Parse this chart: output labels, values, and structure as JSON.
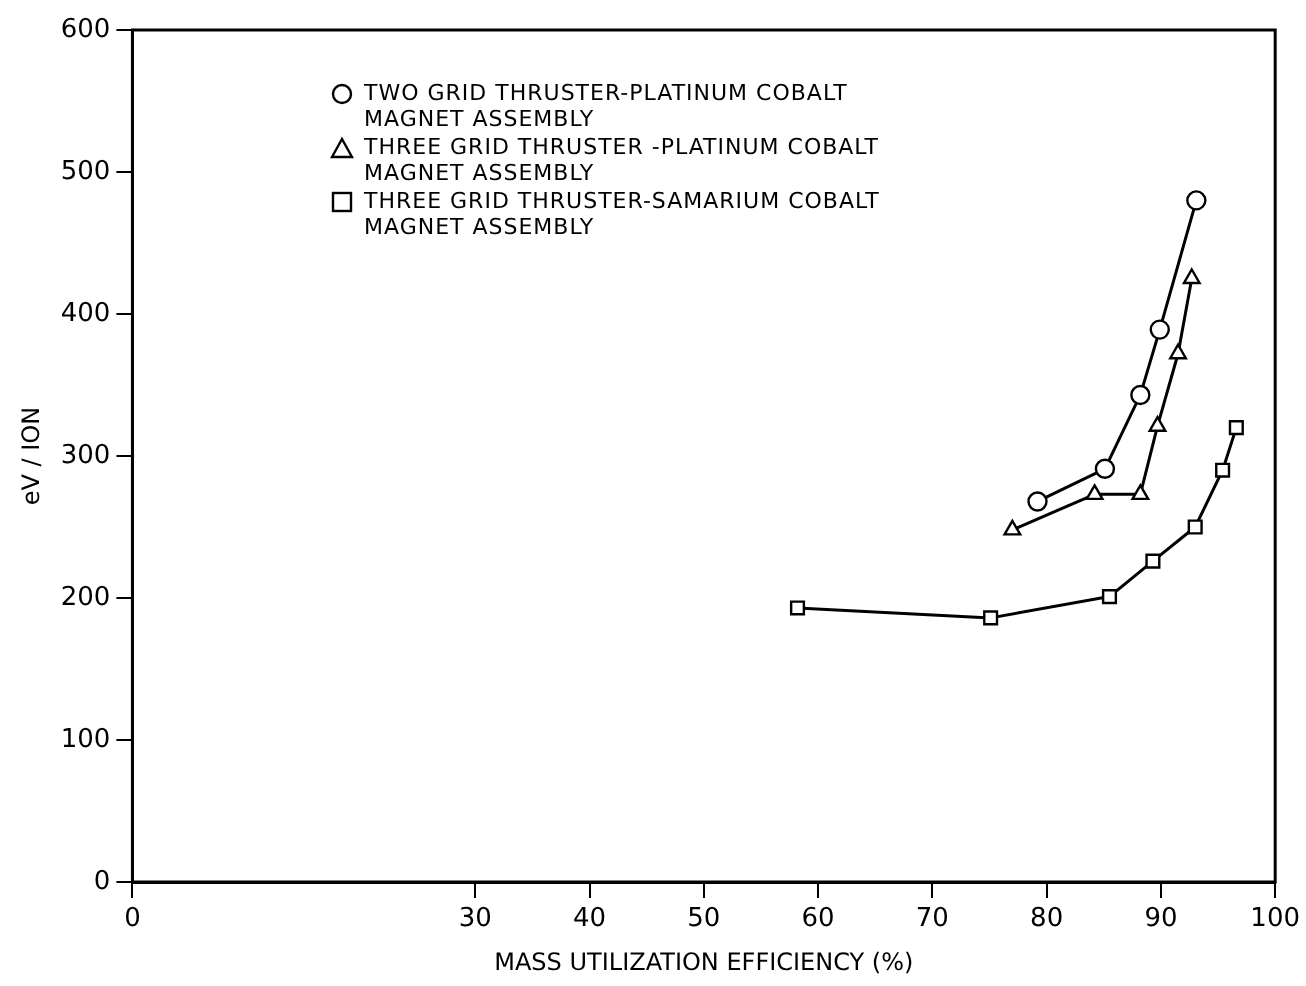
{
  "chart_data": {
    "type": "line",
    "xlabel": "MASS UTILIZATION EFFICIENCY (%)",
    "ylabel": "eV / ION",
    "xlim": [
      0,
      100
    ],
    "xticks": [
      0,
      30,
      40,
      50,
      60,
      70,
      80,
      90,
      100
    ],
    "ylim": [
      0,
      600
    ],
    "yticks": [
      0,
      100,
      200,
      300,
      400,
      500,
      600
    ],
    "grid": false,
    "legend": "top",
    "line_style": "solid",
    "series": [
      {
        "name": "TWO GRID THRUSTER-PLATINUM COBALT MAGNET ASSEMBLY",
        "color": "#000000",
        "marker": "circle",
        "x": [
          79.2,
          85.1,
          88.2,
          89.9,
          93.1
        ],
        "values": [
          268,
          291,
          343,
          389,
          480
        ]
      },
      {
        "name": "THREE GRID THRUSTER -PLATINUM COBALT MAGNET ASSEMBLY",
        "color": "#000000",
        "marker": "triangle",
        "x": [
          77,
          84.2,
          88.2,
          89.7,
          91.5,
          92.7
        ],
        "values": [
          248,
          273,
          273,
          321,
          372,
          425
        ]
      },
      {
        "name": "THREE GRID THRUSTER-SAMARIUM COBALT MAGNET ASSEMBLY",
        "color": "#000000",
        "marker": "square",
        "x": [
          58.2,
          75.1,
          85.5,
          89.3,
          93,
          95.4,
          96.6
        ],
        "values": [
          193,
          186,
          201,
          226,
          250,
          290,
          320
        ]
      }
    ]
  }
}
